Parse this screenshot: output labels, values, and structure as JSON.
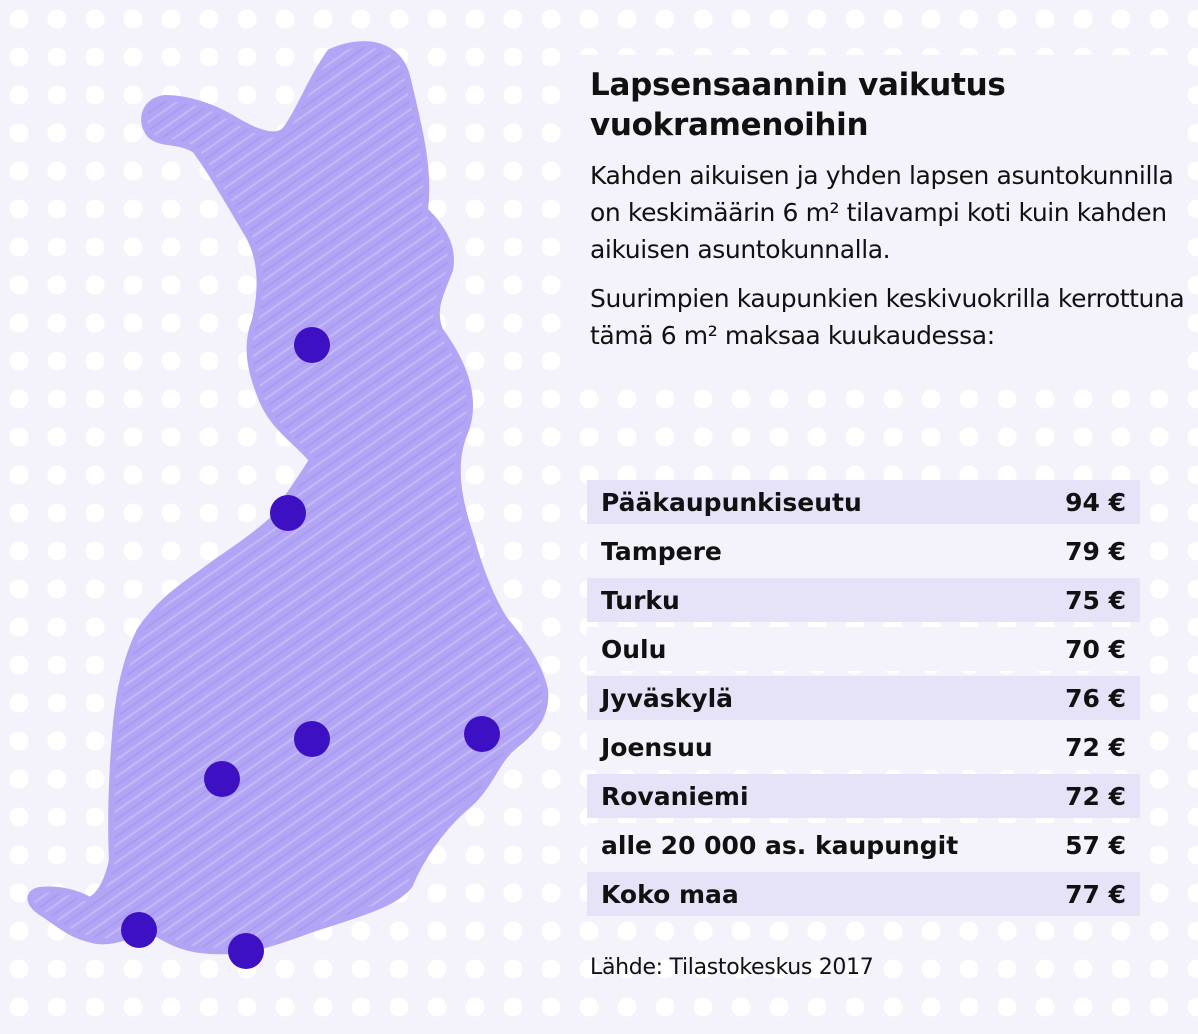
{
  "title": "Lapsensaannin vaikutus vuokramenoihin",
  "paragraph1": "Kahden aikuisen ja yhden lapsen asuntokunnilla on keskimäärin 6 m² tilavampi koti kuin kahden aikuisen asuntokunnalla.",
  "paragraph2": "Suurimpien kaupunkien keskivuokrilla kerrottuna tämä 6 m² maksaa kuukaudessa:",
  "rows": [
    {
      "place": "Pääkaupunkiseutu",
      "value": "94 €"
    },
    {
      "place": "Tampere",
      "value": "79 €"
    },
    {
      "place": "Turku",
      "value": "75 €"
    },
    {
      "place": "Oulu",
      "value": "70 €"
    },
    {
      "place": "Jyväskylä",
      "value": "76 €"
    },
    {
      "place": "Joensuu",
      "value": "72 €"
    },
    {
      "place": "Rovaniemi",
      "value": "72 €"
    },
    {
      "place": "alle 20 000 as. kaupungit",
      "value": "57 €"
    },
    {
      "place": "Koko maa",
      "value": "77 €"
    }
  ],
  "source": "Lähde: Tilastokeskus 2017",
  "colors": {
    "background": "#f4f2fb",
    "map_fill": "#b3a5f5",
    "city_marker": "#3d10c4",
    "row_shade": "#e6e2f8"
  }
}
